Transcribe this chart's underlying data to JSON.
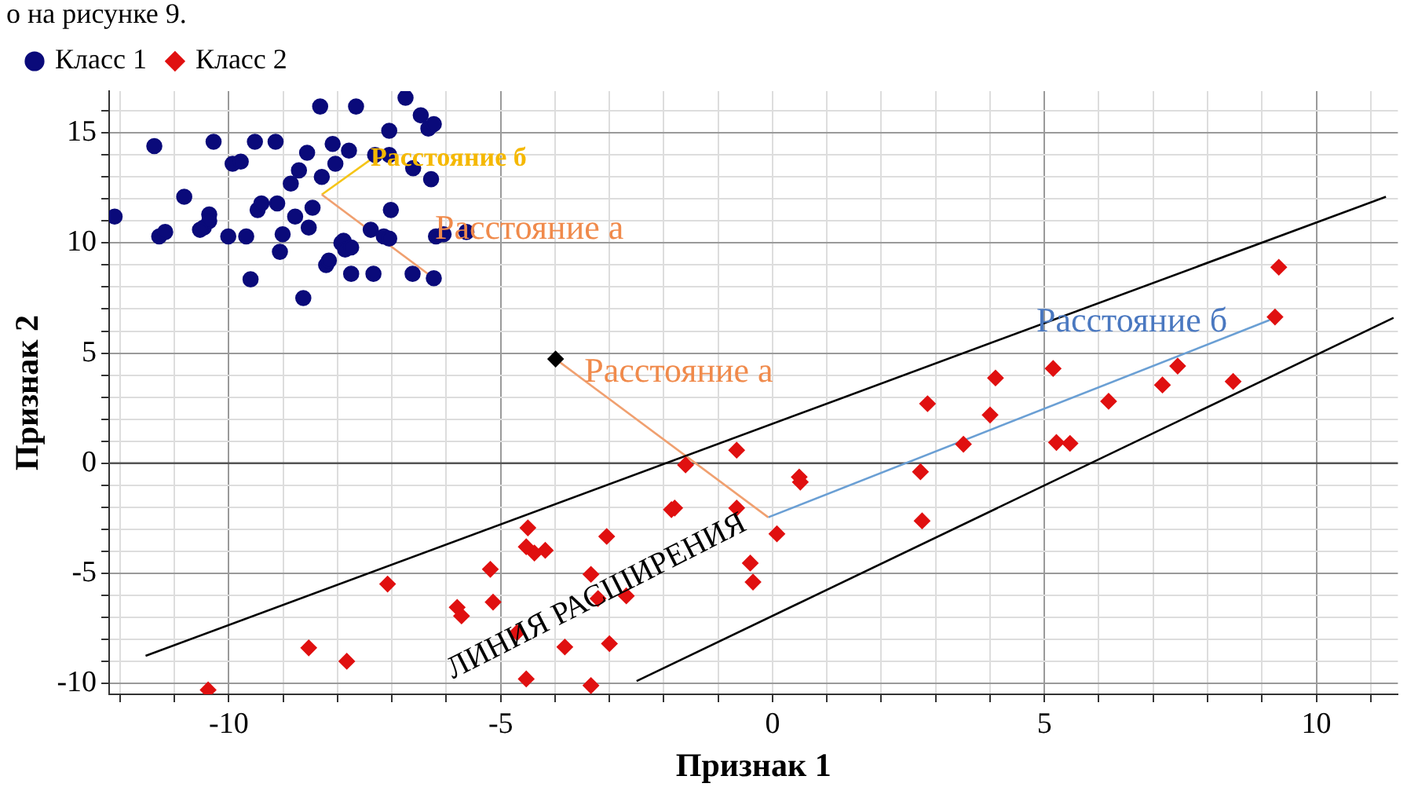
{
  "chart_data": {
    "type": "scatter",
    "xlabel": "Признак 1",
    "ylabel": "Признак 2",
    "xlim": [
      -12.2,
      11.5
    ],
    "ylim": [
      -10.5,
      16.9
    ],
    "xticks": [
      {
        "value": -12,
        "label": null
      },
      {
        "value": -11,
        "label": null
      },
      -10,
      {
        "value": -9,
        "label": null
      },
      {
        "value": -8,
        "label": null
      },
      {
        "value": -7,
        "label": null
      },
      {
        "value": -6,
        "label": null
      },
      -5,
      {
        "value": -4,
        "label": null
      },
      {
        "value": -3,
        "label": null
      },
      {
        "value": -2,
        "label": null
      },
      {
        "value": -1,
        "label": null
      },
      0,
      {
        "value": 1,
        "label": null
      },
      {
        "value": 2,
        "label": null
      },
      {
        "value": 3,
        "label": null
      },
      {
        "value": 4,
        "label": null
      },
      5,
      {
        "value": 6,
        "label": null
      },
      {
        "value": 7,
        "label": null
      },
      {
        "value": 8,
        "label": null
      },
      {
        "value": 9,
        "label": null
      },
      10,
      {
        "value": 11,
        "label": null
      }
    ],
    "yticks": [
      -10,
      {
        "value": -9,
        "label": null
      },
      {
        "value": -8,
        "label": null
      },
      {
        "value": -7,
        "label": null
      },
      {
        "value": -6,
        "label": null
      },
      -5,
      {
        "value": -4,
        "label": null
      },
      {
        "value": -3,
        "label": null
      },
      {
        "value": -2,
        "label": null
      },
      {
        "value": -1,
        "label": null
      },
      0,
      {
        "value": 1,
        "label": null
      },
      {
        "value": 2,
        "label": null
      },
      {
        "value": 3,
        "label": null
      },
      {
        "value": 4,
        "label": null
      },
      5,
      {
        "value": 6,
        "label": null
      },
      {
        "value": 7,
        "label": null
      },
      {
        "value": 8,
        "label": null
      },
      {
        "value": 9,
        "label": null
      },
      10,
      {
        "value": 11,
        "label": null
      },
      {
        "value": 12,
        "label": null
      },
      {
        "value": 13,
        "label": null
      },
      {
        "value": 14,
        "label": null
      },
      15,
      {
        "value": 16,
        "label": null
      }
    ],
    "grid": true,
    "legend": "top left",
    "ref_lines": [
      {
        "axis": "y",
        "value": 0,
        "color": "#555555"
      }
    ],
    "annotations": [
      "о на рисунке 9.",
      "Расстояние б",
      "Расстояние а",
      {
        "text": "Расстояние а",
        "x": -3.46,
        "y": 4.1
      },
      "Расстояние б",
      "ЛИНИЯ РАСШИРЕНИЯ"
    ],
    "series": [
      {
        "name": "Класс 1",
        "color": "#0a0a7a",
        "marker": "circle",
        "x": [
          -12.1,
          -11.37,
          -11.28,
          -11.17,
          -10.82,
          -10.46,
          -10.36,
          -10.36,
          -10.53,
          -10.28,
          -10.01,
          -9.93,
          -9.78,
          -9.68,
          -9.6,
          -9.52,
          -9.47,
          -9.4,
          -9.14,
          -9.11,
          -9.06,
          -9.01,
          -8.86,
          -8.71,
          -8.63,
          -8.78,
          -8.56,
          -8.53,
          -8.46,
          -8.32,
          -8.29,
          -8.21,
          -8.16,
          -8.09,
          -8.04,
          -7.93,
          -7.89,
          -7.86,
          -7.79,
          -7.66,
          -7.75,
          -7.75,
          -7.34,
          -7.39,
          -7.31,
          -7.15,
          -7.05,
          -7.05,
          -7.05,
          -7.02,
          -6.75,
          -6.62,
          -6.61,
          -6.47,
          -6.33,
          -6.23,
          -6.28,
          -6.23,
          -6.19,
          -6.05,
          -5.63
        ],
        "values": [
          11.2,
          14.4,
          10.3,
          10.5,
          12.1,
          10.7,
          11.3,
          11.0,
          10.6,
          14.6,
          10.3,
          13.6,
          13.7,
          10.3,
          8.35,
          14.6,
          11.5,
          11.8,
          14.6,
          11.8,
          9.6,
          10.4,
          12.7,
          13.3,
          7.5,
          11.2,
          14.1,
          10.7,
          11.6,
          16.2,
          13.0,
          9.0,
          9.2,
          14.5,
          13.6,
          10.0,
          10.1,
          9.7,
          14.2,
          16.2,
          9.8,
          8.6,
          8.6,
          10.6,
          14.0,
          10.3,
          10.2,
          15.1,
          14.0,
          11.5,
          16.6,
          8.6,
          13.4,
          15.8,
          15.2,
          15.4,
          12.9,
          8.4,
          10.3,
          10.4,
          10.5
        ]
      },
      {
        "name": "Класс 2",
        "color": "#e01010",
        "marker": "diamond",
        "x": [
          9.31,
          9.24,
          8.47,
          7.45,
          7.17,
          6.18,
          5.16,
          5.22,
          5.47,
          4.1,
          4.0,
          3.51,
          2.85,
          2.72,
          2.75,
          0.49,
          0.51,
          0.08,
          -0.41,
          -0.36,
          -0.66,
          -0.66,
          -1.6,
          -1.8,
          -1.86,
          -3.05,
          -3.34,
          -3.21,
          -2.69,
          -3.0,
          -3.34,
          -3.82,
          -4.18,
          -4.38,
          -4.53,
          -4.5,
          -4.7,
          -4.53,
          -5.14,
          -5.19,
          -5.72,
          -5.8,
          -7.08,
          -7.83,
          -8.53,
          -10.38
        ],
        "values": [
          8.9,
          6.64,
          3.71,
          4.41,
          3.55,
          2.81,
          4.3,
          0.94,
          0.9,
          3.87,
          2.19,
          0.86,
          2.7,
          -0.39,
          -2.62,
          -0.63,
          -0.86,
          -3.21,
          -4.54,
          -5.4,
          -2.04,
          0.59,
          -0.08,
          -2.04,
          -2.11,
          -3.33,
          -5.05,
          -6.15,
          -6.03,
          -8.2,
          -10.1,
          -8.35,
          -3.96,
          -4.08,
          -3.8,
          -2.94,
          -7.7,
          -9.8,
          -6.31,
          -4.82,
          -6.94,
          -6.55,
          -5.49,
          -9.0,
          -8.39,
          -10.3
        ]
      },
      {
        "color": "#000000",
        "marker": "diamond",
        "x": [
          -3.99
        ],
        "values": [
          4.73
        ]
      },
      {
        "type": "line",
        "color": "#000000",
        "marker": "none",
        "x": [
          -11.53,
          11.28
        ],
        "values": [
          -8.75,
          12.1
        ]
      },
      {
        "type": "line",
        "color": "#000000",
        "marker": "none",
        "x": [
          -2.5,
          11.42
        ],
        "values": [
          -9.9,
          6.6
        ]
      },
      {
        "type": "line",
        "color": "#f0a070",
        "marker": "none",
        "x": [
          -3.99,
          -0.08
        ],
        "values": [
          4.73,
          -2.46
        ]
      },
      {
        "type": "line",
        "color": "#6a9fd4",
        "marker": "none",
        "x": [
          -0.08,
          9.14
        ],
        "values": [
          -2.46,
          6.5
        ]
      },
      {
        "type": "line",
        "color": "#f0a070",
        "marker": "none",
        "x": [
          -8.29,
          -6.23
        ],
        "values": [
          12.2,
          8.4
        ]
      },
      {
        "type": "line",
        "color": "#f5c518",
        "marker": "none",
        "x": [
          -8.29,
          -7.33
        ],
        "values": [
          12.2,
          13.9
        ]
      }
    ]
  }
}
